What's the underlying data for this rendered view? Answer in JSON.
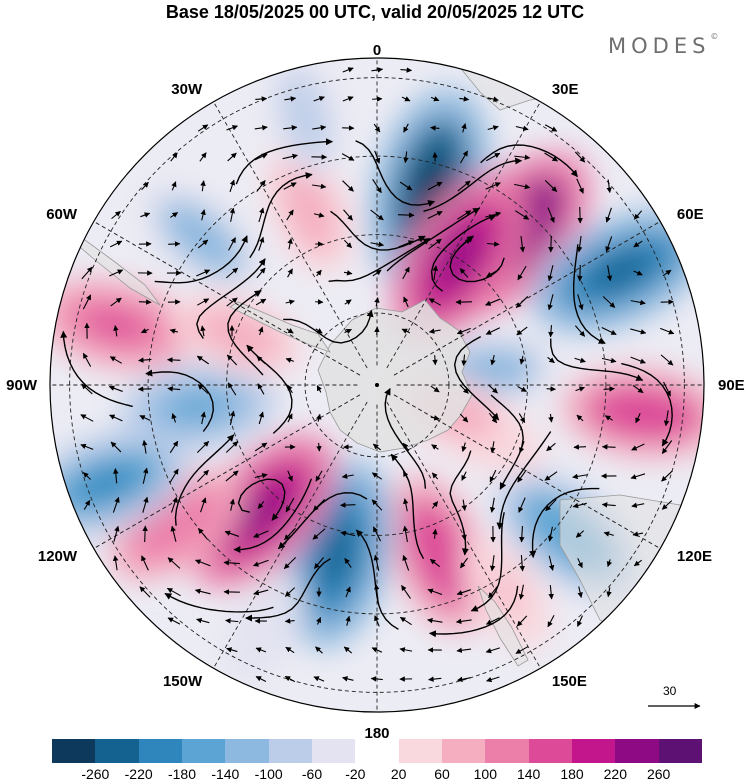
{
  "title": "Base 18/05/2025 00 UTC, valid 20/05/2025 12 UTC",
  "brand": "MODES",
  "brand_mark": "©",
  "longitude_labels": [
    "0",
    "30E",
    "60E",
    "90E",
    "120E",
    "150E",
    "180",
    "150W",
    "120W",
    "90W",
    "60W",
    "30W"
  ],
  "reference_vector": {
    "label": "30",
    "value": 30
  },
  "colorbar": {
    "levels": [
      "-260",
      "-220",
      "-180",
      "-140",
      "-100",
      "-60",
      "-20",
      "20",
      "60",
      "100",
      "140",
      "180",
      "220",
      "260"
    ],
    "colors": [
      "#0d3a5c",
      "#14628f",
      "#2f86bd",
      "#5ba4d3",
      "#8db8df",
      "#bccde9",
      "#e3e3f1",
      "#ffffff",
      "#f9d8de",
      "#f4aec0",
      "#ec7eaa",
      "#dc4a98",
      "#c3168c",
      "#8e0a85",
      "#5c1173"
    ]
  },
  "map": {
    "projection": "south polar stereographic",
    "continent_color": "#e2e2e2",
    "anomalies": [
      {
        "lon": 15,
        "r": 0.62,
        "value": -240
      },
      {
        "lon": 42,
        "r": 0.62,
        "value": 230
      },
      {
        "lon": 33,
        "r": 0.46,
        "value": 210
      },
      {
        "lon": 65,
        "r": 0.82,
        "value": -200
      },
      {
        "lon": 83,
        "r": 0.34,
        "value": -100
      },
      {
        "lon": 96,
        "r": 0.82,
        "value": 150
      },
      {
        "lon": 128,
        "r": 0.74,
        "value": -150
      },
      {
        "lon": 115,
        "r": 0.38,
        "value": 40
      },
      {
        "lon": 160,
        "r": 0.55,
        "value": 150
      },
      {
        "lon": 148,
        "r": 0.75,
        "value": 60
      },
      {
        "lon": -167,
        "r": 0.53,
        "value": -210
      },
      {
        "lon": -138,
        "r": 0.52,
        "value": 200
      },
      {
        "lon": -125,
        "r": 0.75,
        "value": 120
      },
      {
        "lon": -110,
        "r": 0.88,
        "value": -170
      },
      {
        "lon": -97,
        "r": 0.55,
        "value": -130
      },
      {
        "lon": -77,
        "r": 0.82,
        "value": 140
      },
      {
        "lon": -70,
        "r": 0.45,
        "value": 80
      },
      {
        "lon": -50,
        "r": 0.7,
        "value": -100
      },
      {
        "lon": -21,
        "r": 0.58,
        "value": 90
      },
      {
        "lon": -15,
        "r": 0.85,
        "value": -60
      },
      {
        "lon": 110,
        "r": 0.25,
        "value": 70
      },
      {
        "lon": -155,
        "r": 0.82,
        "value": -40
      }
    ]
  }
}
